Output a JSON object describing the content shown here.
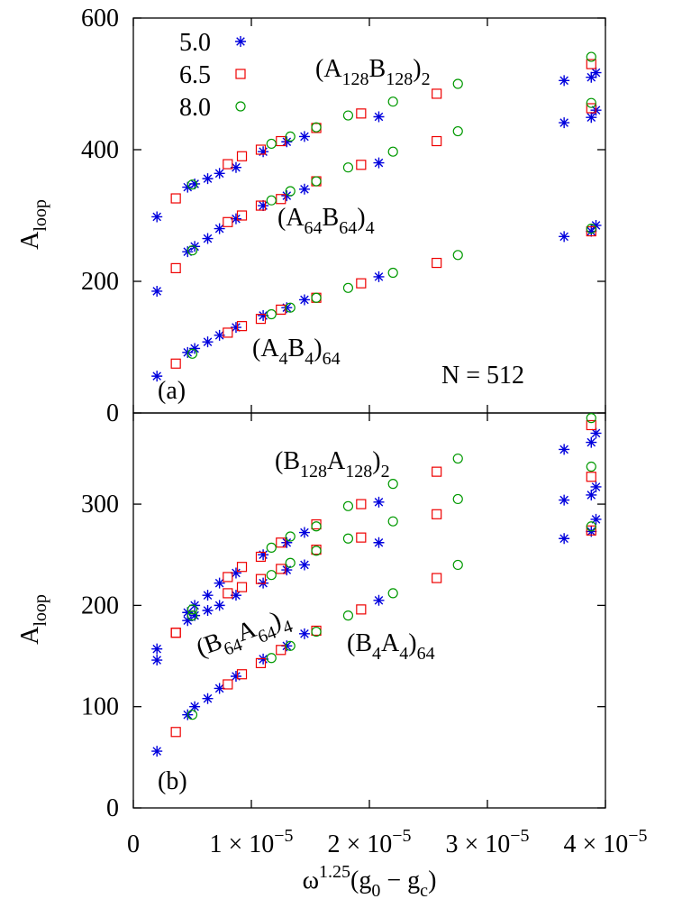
{
  "chart_data": [
    {
      "type": "scatter",
      "legend": "upper left",
      "ylabel": [
        {
          "text": "A"
        },
        {
          "sub": "loop"
        }
      ],
      "xlim": [
        0,
        4e-05
      ],
      "ylim": [
        0,
        600
      ],
      "yticks": [
        0,
        200,
        400,
        600
      ],
      "annotations": [
        {
          "parts": [
            {
              "text": "(A"
            },
            {
              "sub": "128"
            },
            {
              "text": "B"
            },
            {
              "sub": "128"
            },
            {
              "text": ")"
            },
            {
              "sub": "2"
            }
          ]
        },
        {
          "parts": [
            {
              "text": "(A"
            },
            {
              "sub": "64"
            },
            {
              "text": "B"
            },
            {
              "sub": "64"
            },
            {
              "text": ")"
            },
            {
              "sub": "4"
            }
          ]
        },
        {
          "parts": [
            {
              "text": "(A"
            },
            {
              "sub": "4"
            },
            {
              "text": "B"
            },
            {
              "sub": "4"
            },
            {
              "text": ")"
            },
            {
              "sub": "64"
            }
          ]
        },
        {
          "parts": [
            {
              "text": "N = 512"
            }
          ]
        },
        {
          "parts": [
            {
              "text": "(a)"
            }
          ]
        }
      ],
      "series": [
        {
          "name": "5.0",
          "color": "#0000dd",
          "marker": "asterisk",
          "x": [
            2e-06,
            4.6e-06,
            5.2e-06,
            6.3e-06,
            7.3e-06,
            8.7e-06,
            1.1e-05,
            1.3e-05,
            1.45e-05,
            2.08e-05,
            3.65e-05,
            3.88e-05,
            3.92e-05,
            2e-06,
            4.6e-06,
            5.2e-06,
            6.3e-06,
            7.3e-06,
            8.7e-06,
            1.1e-05,
            1.3e-05,
            1.45e-05,
            2.08e-05,
            3.65e-05,
            3.88e-05,
            3.92e-05,
            2e-06,
            4.6e-06,
            5.2e-06,
            6.3e-06,
            7.3e-06,
            8.7e-06,
            1.1e-05,
            1.3e-05,
            1.45e-05,
            2.08e-05,
            3.65e-05,
            3.88e-05,
            3.92e-05
          ],
          "values": [
            298,
            343,
            348,
            356,
            364,
            373,
            397,
            412,
            420,
            450,
            505,
            510,
            517,
            185,
            245,
            253,
            265,
            280,
            295,
            315,
            330,
            340,
            380,
            441,
            449,
            460,
            56,
            92,
            98,
            108,
            118,
            130,
            148,
            160,
            172,
            207,
            268,
            276,
            285
          ]
        },
        {
          "name": "6.5",
          "color": "#ee0000",
          "marker": "square",
          "x": [
            3.6e-06,
            8e-06,
            9.2e-06,
            1.08e-05,
            1.25e-05,
            1.55e-05,
            1.93e-05,
            2.57e-05,
            3.88e-05,
            3.6e-06,
            8e-06,
            9.2e-06,
            1.08e-05,
            1.25e-05,
            1.55e-05,
            1.93e-05,
            2.57e-05,
            3.88e-05,
            3.6e-06,
            8e-06,
            9.2e-06,
            1.08e-05,
            1.25e-05,
            1.55e-05,
            1.93e-05,
            2.57e-05,
            3.88e-05
          ],
          "values": [
            326,
            378,
            390,
            400,
            413,
            433,
            455,
            485,
            530,
            220,
            290,
            300,
            315,
            325,
            352,
            377,
            413,
            463,
            75,
            122,
            132,
            143,
            157,
            175,
            197,
            228,
            276
          ]
        },
        {
          "name": "8.0",
          "color": "#009900",
          "marker": "circle",
          "x": [
            5e-06,
            1.17e-05,
            1.33e-05,
            1.55e-05,
            1.82e-05,
            2.2e-05,
            2.75e-05,
            3.88e-05,
            5e-06,
            1.17e-05,
            1.33e-05,
            1.55e-05,
            1.82e-05,
            2.2e-05,
            2.75e-05,
            3.88e-05,
            5e-06,
            1.17e-05,
            1.33e-05,
            1.55e-05,
            1.82e-05,
            2.2e-05,
            2.75e-05,
            3.88e-05
          ],
          "values": [
            347,
            409,
            420,
            434,
            452,
            473,
            500,
            541,
            247,
            323,
            337,
            352,
            373,
            397,
            428,
            471,
            90,
            150,
            160,
            175,
            190,
            213,
            240,
            280
          ]
        }
      ]
    },
    {
      "type": "scatter",
      "ylabel": [
        {
          "text": "A"
        },
        {
          "sub": "loop"
        }
      ],
      "xlabel": [
        {
          "text": "ω"
        },
        {
          "sup": "1.25"
        },
        {
          "text": "(g"
        },
        {
          "sub": "0"
        },
        {
          "text": " − g"
        },
        {
          "sub": "c"
        },
        {
          "text": ")"
        }
      ],
      "xlim": [
        0,
        4e-05
      ],
      "ylim": [
        0,
        390
      ],
      "xticks": [
        0,
        {
          "value": 1e-05,
          "label": "1 × 10",
          "sup": "−5"
        },
        {
          "value": 2e-05,
          "label": "2 × 10",
          "sup": "−5"
        },
        {
          "value": 3e-05,
          "label": "3 × 10",
          "sup": "−5"
        },
        {
          "value": 4e-05,
          "label": "4 × 10",
          "sup": "−5"
        }
      ],
      "yticks": [
        0,
        100,
        200,
        300
      ],
      "annotations": [
        {
          "parts": [
            {
              "text": "(B"
            },
            {
              "sub": "128"
            },
            {
              "text": "A"
            },
            {
              "sub": "128"
            },
            {
              "text": ")"
            },
            {
              "sub": "2"
            }
          ]
        },
        {
          "parts": [
            {
              "text": "(B"
            },
            {
              "sub": "64"
            },
            {
              "text": "A"
            },
            {
              "sub": "64"
            },
            {
              "text": ")"
            },
            {
              "sub": "4"
            }
          ]
        },
        {
          "parts": [
            {
              "text": "(B"
            },
            {
              "sub": "4"
            },
            {
              "text": "A"
            },
            {
              "sub": "4"
            },
            {
              "text": ")"
            },
            {
              "sub": "64"
            }
          ]
        },
        {
          "parts": [
            {
              "text": "(b)"
            }
          ]
        }
      ],
      "series": [
        {
          "color": "#0000dd",
          "marker": "asterisk",
          "x": [
            2e-06,
            4.6e-06,
            5.2e-06,
            6.3e-06,
            7.3e-06,
            8.7e-06,
            1.1e-05,
            1.3e-05,
            1.45e-05,
            2.08e-05,
            3.65e-05,
            3.88e-05,
            3.92e-05,
            2e-06,
            4.6e-06,
            5.2e-06,
            6.3e-06,
            7.3e-06,
            8.7e-06,
            1.1e-05,
            1.3e-05,
            1.45e-05,
            2.08e-05,
            3.65e-05,
            3.88e-05,
            3.92e-05,
            2e-06,
            4.6e-06,
            5.2e-06,
            6.3e-06,
            7.3e-06,
            8.7e-06,
            1.1e-05,
            1.3e-05,
            1.45e-05,
            2.08e-05,
            3.65e-05,
            3.88e-05,
            3.92e-05
          ],
          "values": [
            157,
            193,
            200,
            210,
            222,
            232,
            250,
            262,
            272,
            302,
            354,
            361,
            370,
            146,
            185,
            190,
            195,
            200,
            210,
            222,
            235,
            240,
            262,
            304,
            309,
            317,
            56,
            92,
            100,
            108,
            118,
            130,
            147,
            160,
            172,
            205,
            266,
            273,
            285
          ]
        },
        {
          "color": "#ee0000",
          "marker": "square",
          "x": [
            3.6e-06,
            8e-06,
            9.2e-06,
            1.08e-05,
            1.25e-05,
            1.55e-05,
            1.93e-05,
            2.57e-05,
            3.88e-05,
            3.6e-06,
            8e-06,
            9.2e-06,
            1.08e-05,
            1.25e-05,
            1.55e-05,
            1.93e-05,
            2.57e-05,
            3.88e-05,
            3.6e-06,
            8e-06,
            9.2e-06,
            1.08e-05,
            1.25e-05,
            1.55e-05,
            1.93e-05,
            2.57e-05,
            3.88e-05
          ],
          "values": [
            173,
            228,
            238,
            248,
            262,
            280,
            300,
            332,
            378,
            173,
            212,
            218,
            226,
            236,
            255,
            267,
            290,
            327,
            75,
            122,
            132,
            143,
            156,
            175,
            196,
            227,
            274
          ]
        },
        {
          "color": "#009900",
          "marker": "circle",
          "x": [
            5e-06,
            1.17e-05,
            1.33e-05,
            1.55e-05,
            1.82e-05,
            2.2e-05,
            2.75e-05,
            3.88e-05,
            5e-06,
            1.17e-05,
            1.33e-05,
            1.55e-05,
            1.82e-05,
            2.2e-05,
            2.75e-05,
            3.88e-05,
            5e-06,
            1.17e-05,
            1.33e-05,
            1.55e-05,
            1.82e-05,
            2.2e-05,
            2.75e-05,
            3.88e-05
          ],
          "values": [
            196,
            257,
            268,
            278,
            298,
            320,
            345,
            385,
            190,
            230,
            242,
            254,
            266,
            283,
            305,
            337,
            92,
            148,
            160,
            174,
            190,
            212,
            240,
            278
          ]
        }
      ]
    }
  ]
}
